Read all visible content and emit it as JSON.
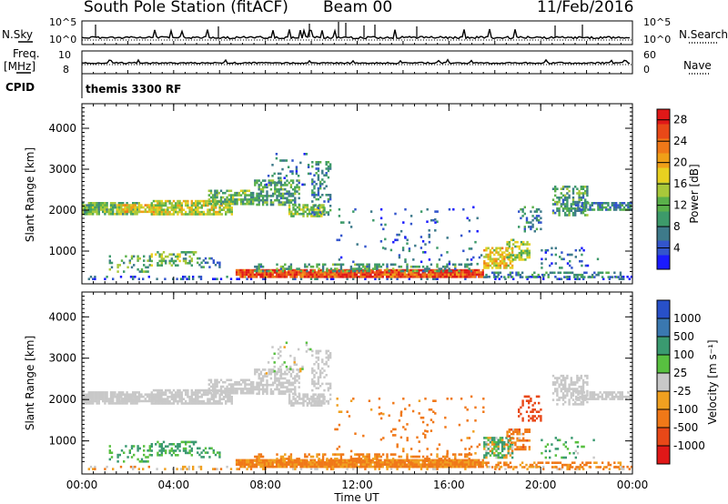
{
  "header": {
    "station": "South Pole Station (fitACF)",
    "beam": "Beam 00",
    "date": "11/Feb/2016"
  },
  "strip_panels": {
    "nsky_label": "N.Sky",
    "nsky_ticks": [
      "10^5",
      "10^0"
    ],
    "nsearch_label": "N.Search",
    "nsearch_ticks": [
      "10^5",
      "10^0"
    ],
    "freq_label_top": "Freq.",
    "freq_label_unit": "[MHz]",
    "freq_ticks": [
      "10",
      "8"
    ],
    "nave_label": "Nave",
    "nave_ticks": [
      "60",
      "0"
    ],
    "cpid_label": "CPID",
    "cpid_value": "themis 3300 RF"
  },
  "chart_data": [
    {
      "type": "heatmap",
      "name": "power",
      "ylabel": "Slant Range [km]",
      "xlabel": "",
      "yticks": [
        "1000",
        "2000",
        "3000",
        "4000"
      ],
      "ylim": [
        200,
        4600
      ],
      "xlim_hours": [
        0,
        24
      ],
      "colorbar": {
        "label": "Power [dB]",
        "ticks": [
          "4",
          "8",
          "12",
          "16",
          "20",
          "24",
          "28"
        ],
        "range": [
          0,
          30
        ],
        "colors": [
          "#1a1aff",
          "#3355cc",
          "#3e7a8a",
          "#3d9a6a",
          "#5ab04a",
          "#a8c83a",
          "#e8d020",
          "#f0a018",
          "#f07818",
          "#e84818",
          "#e01818"
        ]
      }
    },
    {
      "type": "heatmap",
      "name": "velocity",
      "ylabel": "Slant Range [km]",
      "xlabel": "Time UT",
      "xticks": [
        "00:00",
        "04:00",
        "08:00",
        "12:00",
        "16:00",
        "20:00",
        "00:00"
      ],
      "yticks": [
        "1000",
        "2000",
        "3000",
        "4000"
      ],
      "ylim": [
        200,
        4600
      ],
      "xlim_hours": [
        0,
        24
      ],
      "colorbar": {
        "label": "Velocity [m s⁻¹]",
        "ticks": [
          "1000",
          "500",
          "100",
          "25",
          "-25",
          "-100",
          "-500",
          "-1000"
        ],
        "colors": [
          "#2850c8",
          "#3a78b0",
          "#3a9a70",
          "#58c040",
          "#c8c8c8",
          "#f0a020",
          "#f07818",
          "#e84818",
          "#e01818"
        ]
      }
    }
  ]
}
